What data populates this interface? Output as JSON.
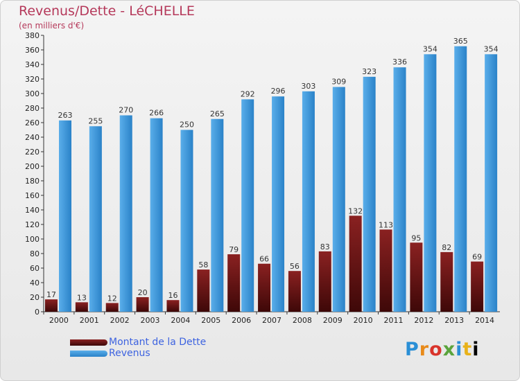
{
  "title": "Revenus/Dette - LéCHELLE",
  "subtitle": "(en milliers d'€)",
  "logo_text": "Proxiti",
  "colors": {
    "debt_top": "#8a2121",
    "debt_bottom": "#3e0808",
    "revenue_top": "#5aaeea",
    "revenue_bottom": "#2a82c8",
    "axis": "#333333"
  },
  "chart_data": {
    "type": "bar",
    "categories": [
      "2000",
      "2001",
      "2002",
      "2003",
      "2004",
      "2005",
      "2006",
      "2007",
      "2008",
      "2009",
      "2010",
      "2011",
      "2012",
      "2013",
      "2014"
    ],
    "series": [
      {
        "name": "Montant de la Dette",
        "values": [
          17,
          13,
          12,
          20,
          16,
          58,
          79,
          66,
          56,
          83,
          132,
          113,
          95,
          82,
          69
        ]
      },
      {
        "name": "Revenus",
        "values": [
          263,
          255,
          270,
          266,
          250,
          265,
          292,
          296,
          303,
          309,
          323,
          336,
          354,
          365,
          354
        ]
      }
    ],
    "ylim": [
      0,
      380
    ],
    "yticks": [
      0,
      20,
      40,
      60,
      80,
      100,
      120,
      140,
      160,
      180,
      200,
      220,
      240,
      260,
      280,
      300,
      320,
      340,
      360,
      380
    ],
    "grid": false,
    "legend_position": "bottom-left"
  }
}
